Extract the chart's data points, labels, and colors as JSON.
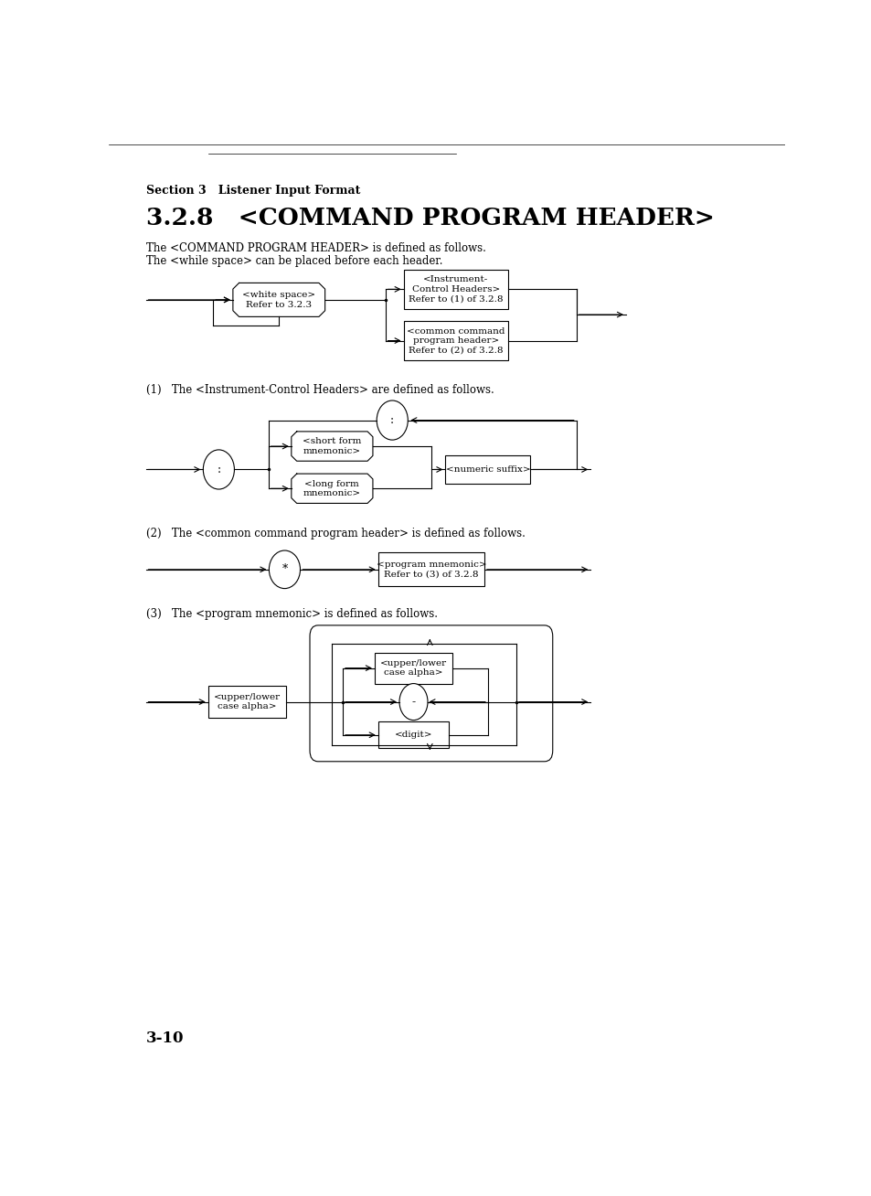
{
  "bg_color": "#ffffff",
  "section_label": "Section 3   Listener Input Format",
  "title": "3.2.8   <COMMAND PROGRAM HEADER>",
  "desc1": "The <COMMAND PROGRAM HEADER> is defined as follows.",
  "desc2": "The <while space> can be placed before each header.",
  "note1": "(1)   The <Instrument-Control Headers> are defined as follows.",
  "note2": "(2)   The <common command program header> is defined as follows.",
  "note3": "(3)   The <program mnemonic> is defined as follows.",
  "page_num": "3-10",
  "box1_text": "<white space>\nRefer to 3.2.3",
  "box2_text": "<Instrument-\nControl Headers>\nRefer to (1) of 3.2.8",
  "box3_text": "<common command\nprogram header>\nRefer to (2) of 3.2.8",
  "box4_text": "<short form\nmnemonic>",
  "box5_text": "<long form\nmnemonic>",
  "box6_text": "<numeric suffix>",
  "box7_text": "<program mnemonic>\nRefer to (3) of 3.2.8",
  "box8_text": "<upper/lower\ncase alpha>",
  "box9_text": "<upper/lower\ncase alpha>",
  "box10_text": "<digit>",
  "figw": 9.54,
  "figh": 13.08,
  "dpi": 100
}
